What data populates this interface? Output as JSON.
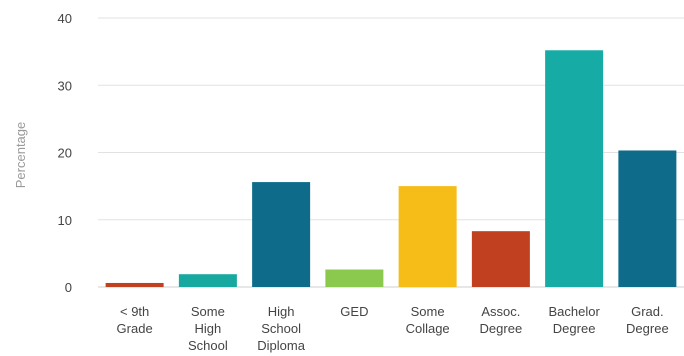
{
  "chart_data": {
    "type": "bar",
    "title": "",
    "xlabel": "",
    "ylabel": "Percentage",
    "ylim": [
      0,
      40
    ],
    "yticks": [
      0,
      10,
      20,
      30,
      40
    ],
    "grid": true,
    "categories": [
      [
        "< 9th",
        "Grade"
      ],
      [
        "Some",
        "High",
        "School"
      ],
      [
        "High",
        "School",
        "Diploma"
      ],
      [
        "GED"
      ],
      [
        "Some",
        "Collage"
      ],
      [
        "Assoc.",
        "Degree"
      ],
      [
        "Bachelor",
        "Degree"
      ],
      [
        "Grad.",
        "Degree"
      ]
    ],
    "values": [
      0.6,
      1.9,
      15.6,
      2.6,
      15.0,
      8.3,
      35.2,
      20.3
    ],
    "colors": [
      "#c0401f",
      "#17a89f",
      "#0e6b89",
      "#8ac94d",
      "#f6bc17",
      "#c0401f",
      "#16aca5",
      "#0e6b89"
    ]
  },
  "style": {
    "grid_color": "#e2e2e2",
    "axis_color": "#cfcfcf"
  }
}
